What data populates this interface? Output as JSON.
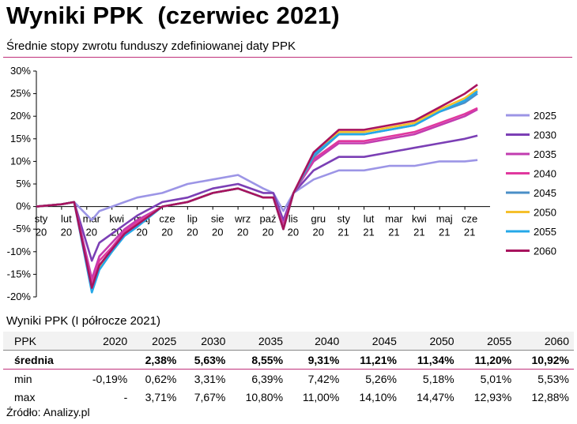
{
  "title": "Wyniki PPK  (czerwiec 2021)",
  "subtitle": "Średnie stopy zwrotu funduszy zdefiniowanej daty PPK",
  "table_title": "Wyniki PPK (I półrocze  2021)",
  "source": "Źródło: Analizy.pl",
  "chart_data": {
    "type": "line",
    "title": "",
    "xlabel": "",
    "ylabel": "",
    "ylim": [
      -20,
      30
    ],
    "y_ticks": [
      "30%",
      "25%",
      "20%",
      "15%",
      "10%",
      "5%",
      "0%",
      "-5%",
      "-10%",
      "-15%",
      "-20%"
    ],
    "x_ticks": [
      {
        "m": "sty",
        "y": "20"
      },
      {
        "m": "lut",
        "y": "20"
      },
      {
        "m": "mar",
        "y": "20"
      },
      {
        "m": "kwi",
        "y": "20"
      },
      {
        "m": "maj",
        "y": "20"
      },
      {
        "m": "cze",
        "y": "20"
      },
      {
        "m": "lip",
        "y": "20"
      },
      {
        "m": "sie",
        "y": "20"
      },
      {
        "m": "wrz",
        "y": "20"
      },
      {
        "m": "paź",
        "y": "20"
      },
      {
        "m": "lis",
        "y": "20"
      },
      {
        "m": "gru",
        "y": "20"
      },
      {
        "m": "sty",
        "y": "21"
      },
      {
        "m": "lut",
        "y": "21"
      },
      {
        "m": "mar",
        "y": "21"
      },
      {
        "m": "kwi",
        "y": "21"
      },
      {
        "m": "maj",
        "y": "21"
      },
      {
        "m": "cze",
        "y": "21"
      }
    ],
    "legend_position": "right",
    "x_months": [
      0,
      1,
      1.5,
      2.2,
      2.5,
      3,
      3.5,
      4,
      5,
      6,
      7,
      8,
      9,
      9.4,
      9.8,
      10.2,
      11,
      12,
      13,
      14,
      15,
      16,
      17,
      17.5
    ],
    "series": [
      {
        "name": "2025",
        "color": "#9c95e6",
        "values": [
          0,
          0.5,
          1,
          -3,
          -1,
          0,
          1,
          2,
          3,
          5,
          6,
          7,
          4,
          3,
          -1,
          3,
          6,
          8,
          8,
          9,
          9,
          10,
          10,
          10.3
        ]
      },
      {
        "name": "2030",
        "color": "#7b3fb5",
        "values": [
          0,
          0.5,
          1,
          -12,
          -8,
          -6,
          -4,
          -2,
          1,
          2,
          4,
          5,
          3,
          3,
          -3,
          3,
          8,
          11,
          11,
          12,
          13,
          14,
          15,
          15.7
        ]
      },
      {
        "name": "2035",
        "color": "#c23cb0",
        "values": [
          0,
          0.5,
          1,
          -16,
          -11,
          -8,
          -5,
          -3,
          0,
          1,
          3,
          4,
          2,
          2,
          -4,
          3,
          10,
          14,
          14,
          15,
          16,
          18,
          20,
          21.5
        ]
      },
      {
        "name": "2040",
        "color": "#e0389e",
        "values": [
          0,
          0.5,
          1,
          -17,
          -12,
          -9,
          -5.5,
          -3.5,
          0,
          1,
          3,
          4,
          2,
          2,
          -4.5,
          3,
          10.5,
          14.5,
          14.5,
          15.5,
          16.5,
          18.5,
          20.5,
          21.8
        ]
      },
      {
        "name": "2045",
        "color": "#4a8fc7",
        "values": [
          0,
          0.5,
          1,
          -18,
          -13,
          -9.5,
          -6,
          -4,
          0,
          1,
          3,
          4,
          2,
          2,
          -5,
          3,
          11,
          16,
          16,
          17,
          18,
          21,
          23,
          25
        ]
      },
      {
        "name": "2050",
        "color": "#f5c02c",
        "values": [
          0,
          0.5,
          1,
          -18.5,
          -13.5,
          -10,
          -6,
          -4,
          0,
          1,
          3,
          4,
          2,
          2,
          -5,
          3,
          11.5,
          16.5,
          16.5,
          17.5,
          18.5,
          21.5,
          24,
          26
        ]
      },
      {
        "name": "2055",
        "color": "#25a8e8",
        "values": [
          0,
          0.5,
          1,
          -19,
          -14,
          -10,
          -6.5,
          -4.5,
          0,
          1,
          3,
          4,
          2,
          2,
          -5,
          3,
          11.5,
          16,
          16,
          17,
          18,
          21,
          23.5,
          25.5
        ]
      },
      {
        "name": "2060",
        "color": "#a8135e",
        "values": [
          0,
          0.5,
          1,
          -18,
          -13,
          -9.5,
          -6,
          -4,
          0,
          1,
          3,
          4,
          2,
          2,
          -5,
          3,
          12,
          17,
          17,
          18,
          19,
          22,
          25,
          27
        ]
      }
    ]
  },
  "results_table": {
    "headers": [
      "PPK",
      "2020",
      "2025",
      "2030",
      "2035",
      "2040",
      "2045",
      "2050",
      "2055",
      "2060"
    ],
    "rows": [
      {
        "label": "średnia",
        "bold": true,
        "values": [
          "",
          "2,38%",
          "5,63%",
          "8,55%",
          "9,31%",
          "11,21%",
          "11,34%",
          "11,20%",
          "10,92%"
        ]
      },
      {
        "label": "min",
        "bold": false,
        "values": [
          "-0,19%",
          "0,62%",
          "3,31%",
          "6,39%",
          "7,42%",
          "5,26%",
          "5,18%",
          "5,01%",
          "5,53%"
        ]
      },
      {
        "label": "max",
        "bold": false,
        "values": [
          "-",
          "3,71%",
          "7,67%",
          "10,80%",
          "11,00%",
          "14,10%",
          "14,47%",
          "12,93%",
          "12,88%"
        ]
      }
    ]
  }
}
